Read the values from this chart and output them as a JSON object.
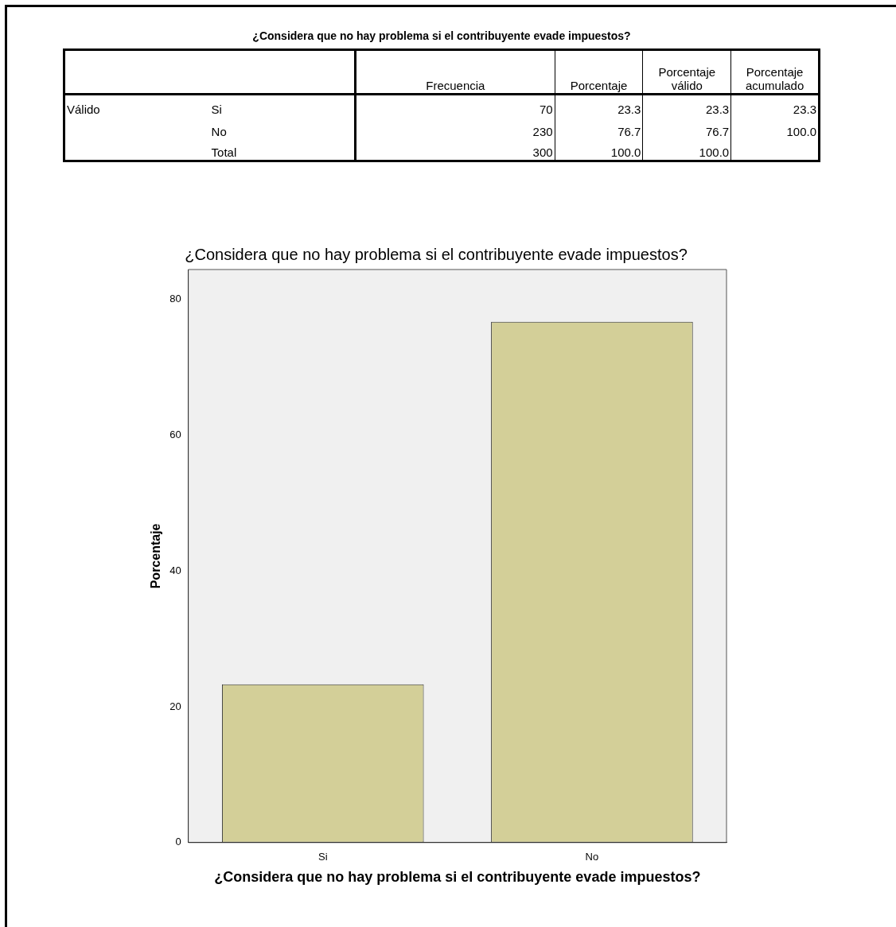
{
  "chart_data": [
    {
      "type": "other",
      "title": "¿Considera que no hay problema si el contribuyente evade impuestos?",
      "annotations": [
        "Frecuencia",
        "Porcentaje",
        "Porcentaje válido",
        "Porcentaje acumulado",
        "Válido",
        "Si",
        "70",
        "23.3",
        "23.3",
        "23.3",
        "No",
        "230",
        "76.7",
        "76.7",
        "100.0",
        "Total",
        "300",
        "100.0",
        "100.0"
      ]
    },
    {
      "type": "bar",
      "title": "¿Considera que no hay problema si el contribuyente evade impuestos?",
      "xlabel": "¿Considera que no hay problema si el contribuyente evade impuestos?",
      "ylabel": "Porcentaje",
      "categories": [
        "Si",
        "No"
      ],
      "values": [
        23.3,
        76.7
      ],
      "color": "#d3cf98",
      "ylim": [
        0,
        84.4
      ],
      "yticks": [
        0,
        20,
        40,
        60,
        80
      ],
      "grid": false,
      "legend": false
    }
  ]
}
